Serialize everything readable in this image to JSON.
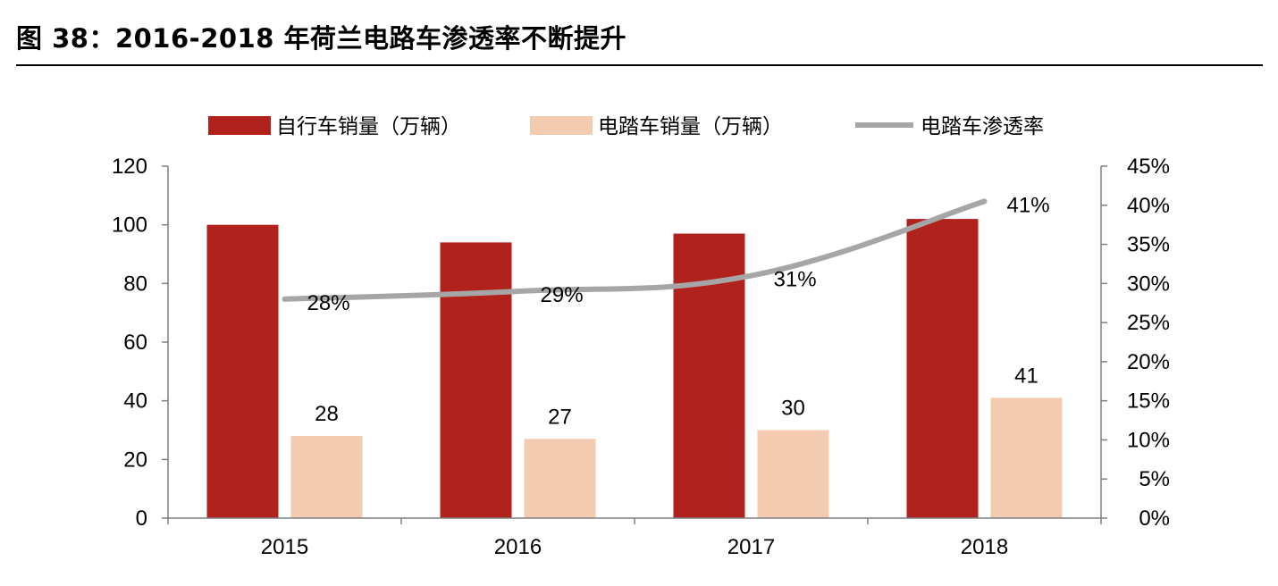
{
  "title": "图 38：2016-2018 年荷兰电路车渗透率不断提升",
  "colors": {
    "bike": "#b0221b",
    "ebike": "#f2cbb0",
    "line": "#a6a6a6",
    "axis": "#7f7f7f"
  },
  "chart_data": {
    "type": "bar",
    "categories": [
      "2015",
      "2016",
      "2017",
      "2018"
    ],
    "series": [
      {
        "name": "自行车销量（万辆）",
        "type": "bar",
        "axis": "left",
        "values": [
          100,
          94,
          97,
          102
        ]
      },
      {
        "name": "电踏车销量（万辆）",
        "type": "bar",
        "axis": "left",
        "values": [
          28,
          27,
          30,
          41
        ],
        "labels": [
          "28",
          "27",
          "30",
          "41"
        ]
      },
      {
        "name": "电踏车渗透率",
        "type": "line",
        "axis": "right",
        "values": [
          0.28,
          0.29,
          0.31,
          0.405
        ],
        "labels": [
          "28%",
          "29%",
          "31%",
          "41%"
        ]
      }
    ],
    "y_left": {
      "min": 0,
      "max": 120,
      "ticks": [
        "0",
        "20",
        "40",
        "60",
        "80",
        "100",
        "120"
      ]
    },
    "y_right": {
      "min": 0,
      "max": 0.45,
      "ticks": [
        "0%",
        "5%",
        "10%",
        "15%",
        "20%",
        "25%",
        "30%",
        "35%",
        "40%",
        "45%"
      ]
    },
    "legend": "top",
    "grid": false
  }
}
